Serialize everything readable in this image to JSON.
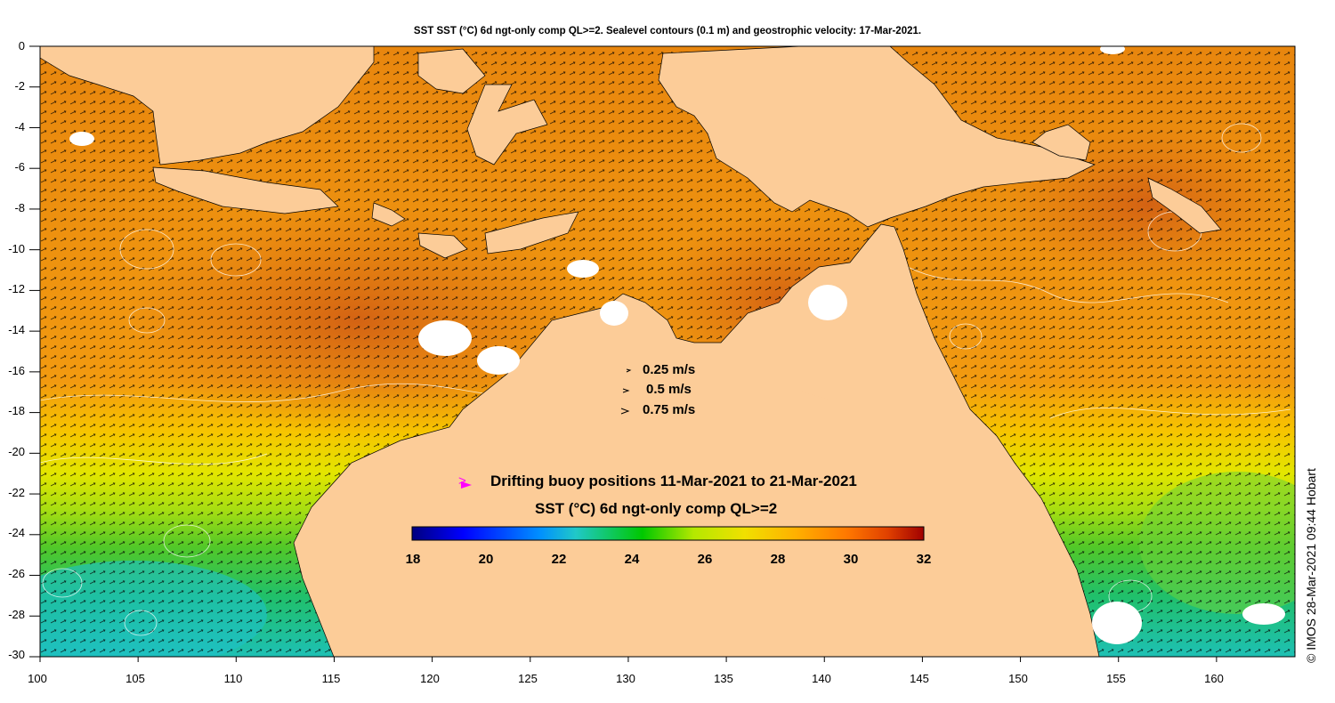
{
  "title": "SST SST (°C) 6d ngt-only comp QL>=2. Sealevel contours (0.1 m) and geostrophic velocity: 17-Mar-2021.",
  "credit": "© IMOS 28-Mar-2021 09:44 Hobart",
  "map": {
    "lon_range": [
      100,
      164
    ],
    "lat_range": [
      -30,
      0
    ],
    "x_ticks": [
      "100",
      "105",
      "110",
      "115",
      "120",
      "125",
      "130",
      "135",
      "140",
      "145",
      "150",
      "155",
      "160"
    ],
    "y_ticks": [
      "0",
      "-2",
      "-4",
      "-6",
      "-8",
      "-10",
      "-12",
      "-14",
      "-16",
      "-18",
      "-20",
      "-22",
      "-24",
      "-26",
      "-28",
      "-30"
    ],
    "land_color": "#fccc98",
    "cloud_color": "#ffffff",
    "contour_color": "#ffffff",
    "arrow_color": "#000000"
  },
  "velocity_legend": [
    {
      "label": "0.25 m/s"
    },
    {
      "label": "0.5 m/s"
    },
    {
      "label": "0.75 m/s"
    }
  ],
  "buoy_legend": {
    "marker": ">",
    "label": "Drifting buoy positions 11-Mar-2021 to 21-Mar-2021",
    "color": "#ff00ff"
  },
  "colorbar": {
    "title": "SST (°C) 6d ngt-only comp QL>=2",
    "min": 18,
    "max": 32,
    "ticks": [
      "18",
      "20",
      "22",
      "24",
      "26",
      "28",
      "30",
      "32"
    ],
    "stops": [
      "#00007f",
      "#0000ff",
      "#0090ff",
      "#20c8c8",
      "#00c800",
      "#b4e800",
      "#f0e000",
      "#ffb000",
      "#ff7800",
      "#e04000",
      "#a00000"
    ]
  }
}
